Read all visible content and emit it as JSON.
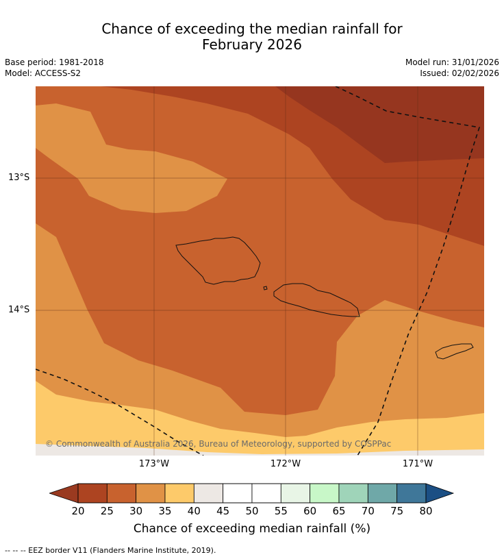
{
  "title": {
    "line1": "Chance of exceeding the median rainfall for",
    "line2": "February 2026"
  },
  "meta": {
    "base_period": "Base period: 1981-2018",
    "model": "Model: ACCESS-S2",
    "model_run": "Model run: 31/01/2026",
    "issued": "Issued: 02/02/2026"
  },
  "map": {
    "lat_labels": [
      "13°S",
      "14°S"
    ],
    "lon_labels": [
      "173°W",
      "172°W",
      "171°W"
    ],
    "copyright": "© Commonwealth of Australia 2026, Bureau of Meteorology, supported by COSPPac"
  },
  "colorbar": {
    "ticks": [
      "20",
      "25",
      "30",
      "35",
      "40",
      "45",
      "50",
      "55",
      "60",
      "65",
      "70",
      "75",
      "80"
    ],
    "low_extend_color": "#9a3a20",
    "high_extend_color": "#1b4f84",
    "colors": [
      "#ad4421",
      "#c8622e",
      "#e09246",
      "#fdca6a",
      "#ede8e4",
      "#ffffff",
      "#ffffff",
      "#e8f5e6",
      "#c8f7c8",
      "#9fd4b9",
      "#6fa8a8",
      "#3f7799"
    ],
    "label": "Chance of exceeding median rainfall (%)"
  },
  "footnote": "--  --  -- EEZ border V11 (Flanders Marine Institute, 2019)."
}
